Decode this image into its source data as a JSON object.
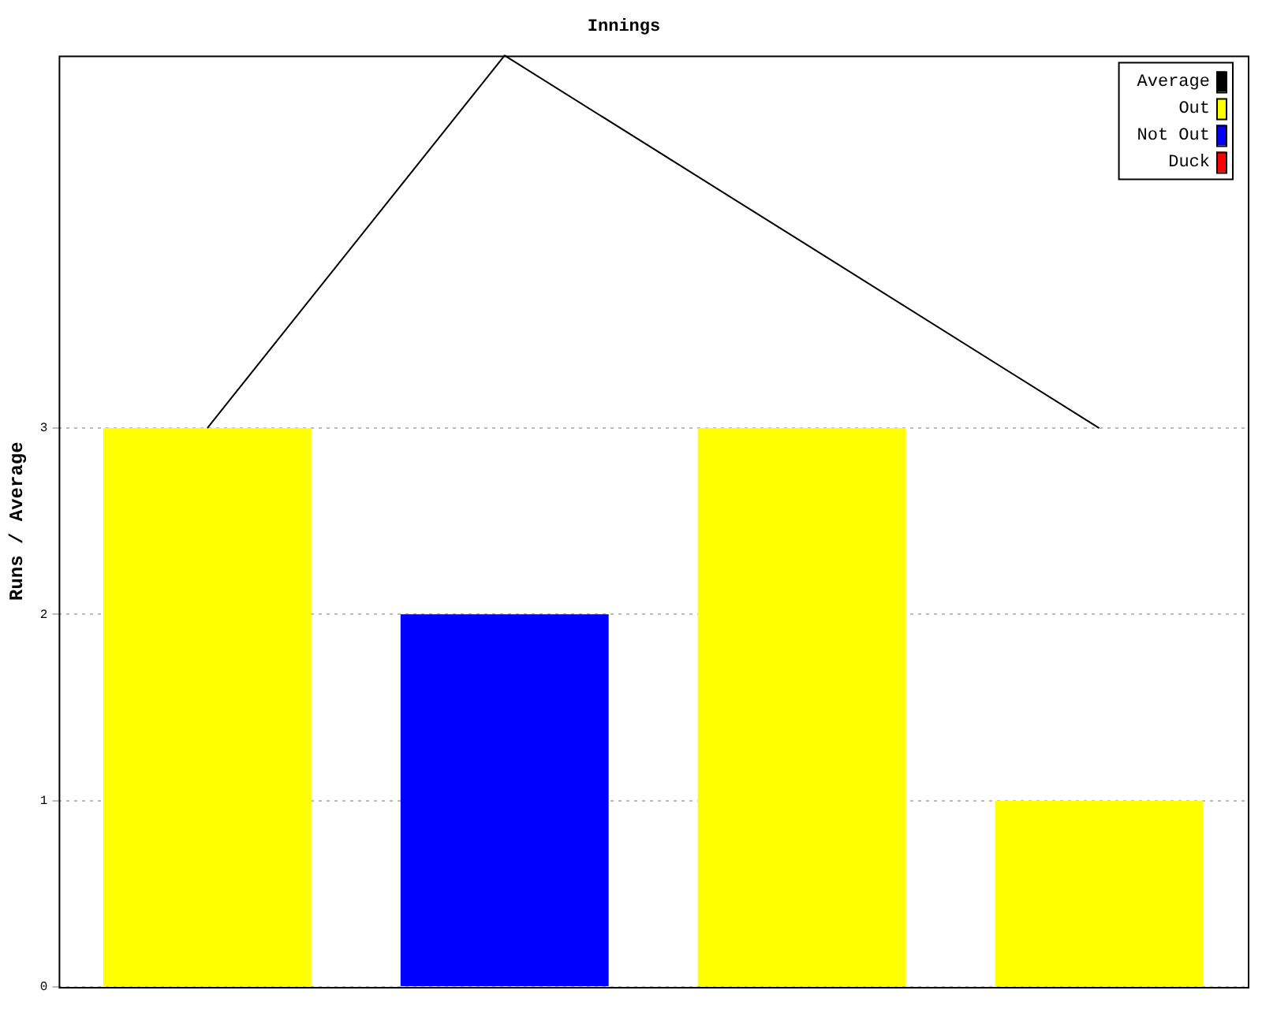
{
  "chart_data": {
    "type": "bar",
    "title": "Innings",
    "ylabel": "Runs / Average",
    "categories": [
      null,
      null,
      null,
      null
    ],
    "series": [
      {
        "name": "Average",
        "type": "line",
        "color": "#000000",
        "values": [
          3,
          5,
          4,
          3
        ]
      },
      {
        "name": "Out",
        "color": "#ffff00",
        "values": [
          3,
          null,
          3,
          1
        ]
      },
      {
        "name": "Not Out",
        "color": "#0000ff",
        "values": [
          null,
          2,
          null,
          null
        ]
      },
      {
        "name": "Duck",
        "color": "#ff0000",
        "values": [
          null,
          null,
          null,
          null
        ]
      }
    ],
    "ylim": [
      0,
      5
    ],
    "yticks": [
      0,
      1,
      2,
      3
    ],
    "grid": "y",
    "legend": "top right",
    "marker": "none"
  }
}
